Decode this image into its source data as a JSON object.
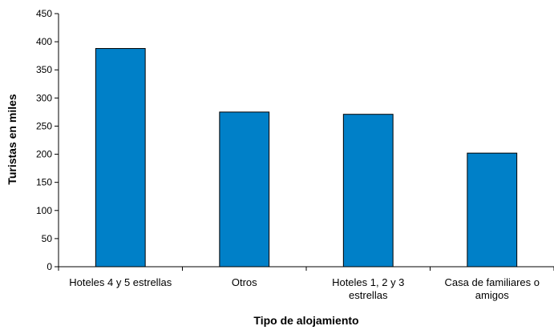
{
  "chart_data": {
    "type": "bar",
    "categories": [
      [
        "Hoteles 4 y 5 estrellas"
      ],
      [
        "Otros"
      ],
      [
        "Hoteles 1, 2 y 3",
        "estrellas"
      ],
      [
        "Casa de familiares o",
        "amigos"
      ]
    ],
    "values": [
      388,
      275,
      271,
      202
    ],
    "xlabel": "Tipo de alojamiento",
    "ylabel": "Turistas en miles",
    "ylim": [
      0,
      450
    ],
    "yticks": [
      "0",
      "50",
      "100",
      "150",
      "200",
      "250",
      "300",
      "350",
      "400",
      "450"
    ],
    "grid": false,
    "legend": "none",
    "bar_color": "#0080c8",
    "bar_stroke": "#000000"
  }
}
